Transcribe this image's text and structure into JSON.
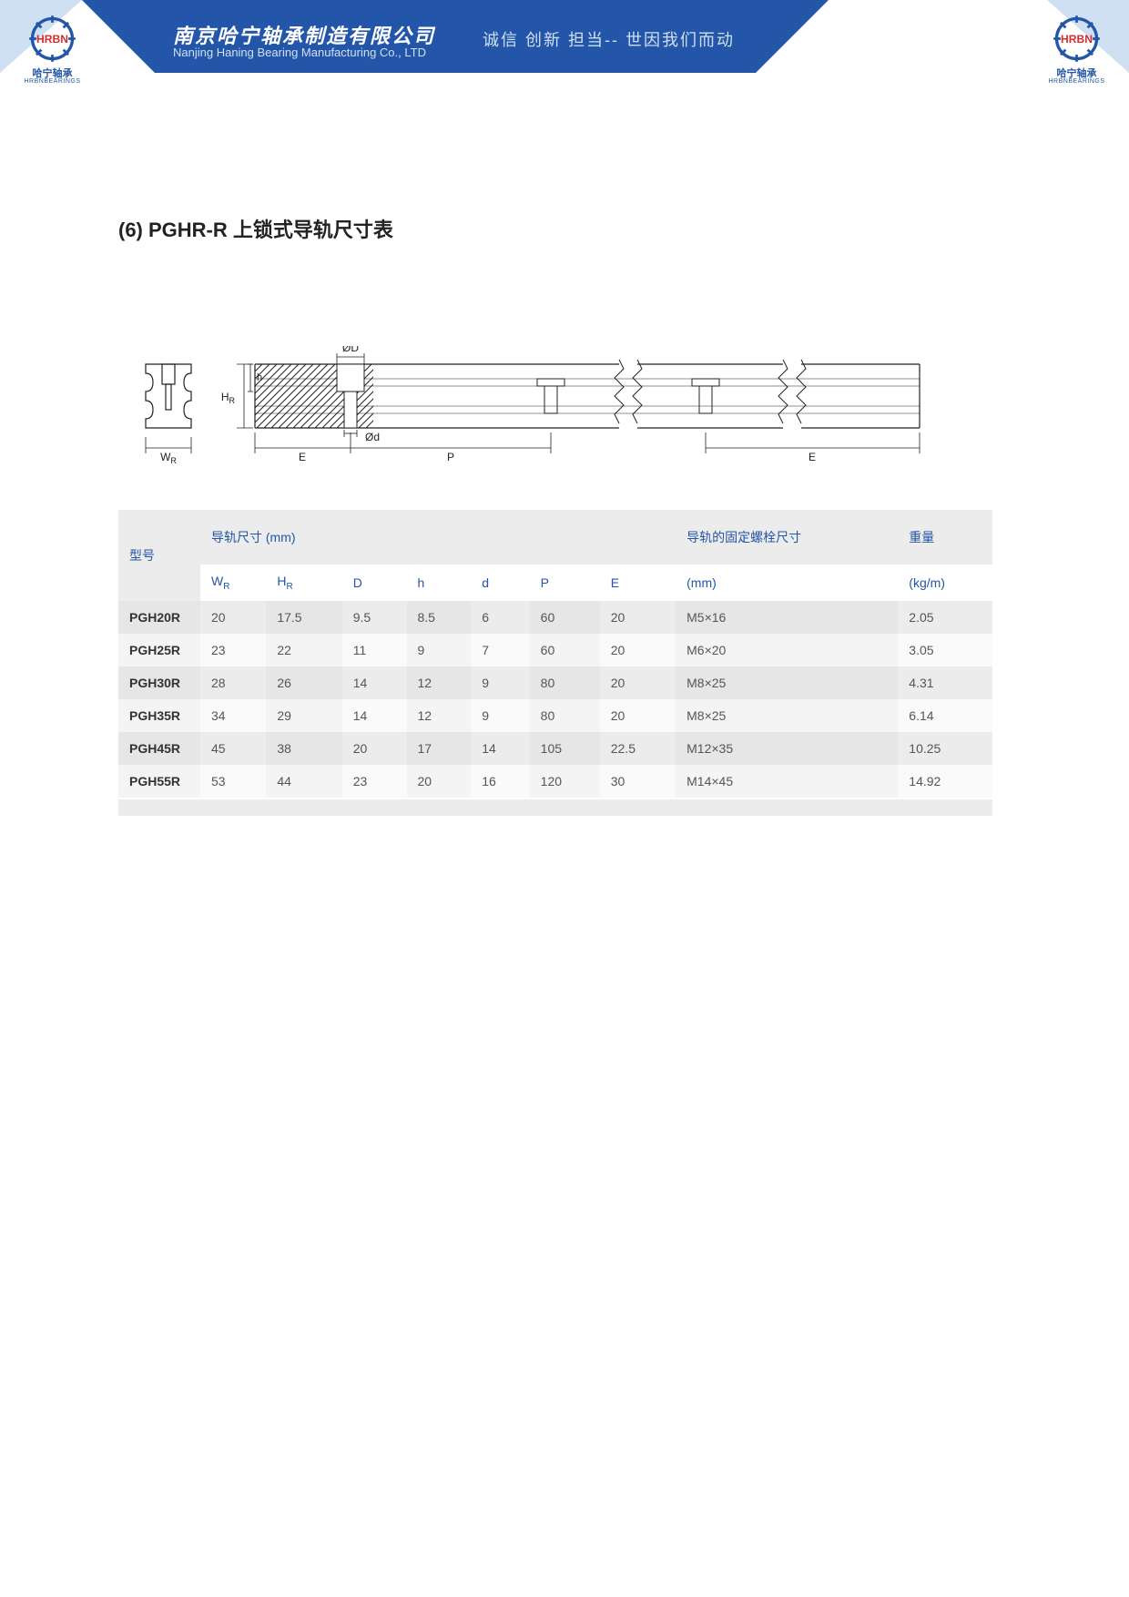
{
  "header": {
    "company_cn": "南京哈宁轴承制造有限公司",
    "company_en": "Nanjing Haning Bearing Manufacturing Co., LTD",
    "tagline": "诚信 创新 担当-- 世因我们而动",
    "logo_label_cn": "哈宁轴承",
    "logo_label_en": "HRBNBEARINGS",
    "logo_mark": "HRBN",
    "brand_color": "#2356a8",
    "banner_bg": "#2356a8",
    "banner_light": "#cfe0f2"
  },
  "title": {
    "text": "(6) PGHR-R 上锁式导轨尺寸表",
    "fontsize": 22
  },
  "diagram": {
    "type": "technical-drawing",
    "labels": {
      "WR": "W",
      "WR_sub": "R",
      "HR": "H",
      "HR_sub": "R",
      "h": "h",
      "D": "ØD",
      "d": "Ød",
      "E": "E",
      "P": "P"
    },
    "stroke": "#222222",
    "stroke_width": 1.2,
    "hatch_spacing": 6
  },
  "table": {
    "type": "table",
    "header_color": "#2356a8",
    "header_bg": "#ececec",
    "col_model_label": "型号",
    "group_rail_label": "导轨尺寸 (mm)",
    "group_bolt_label": "导轨的固定螺栓尺寸",
    "group_weight_label": "重量",
    "columns": [
      "WR",
      "HR",
      "D",
      "h",
      "d",
      "P",
      "E",
      "(mm)",
      "(kg/m)"
    ],
    "col_wr": "W",
    "col_wr_sub": "R",
    "col_hr": "H",
    "col_hr_sub": "R",
    "col_D": "D",
    "col_h": "h",
    "col_d": "d",
    "col_P": "P",
    "col_E": "E",
    "col_bolt": "(mm)",
    "col_weight": "(kg/m)",
    "rows": [
      {
        "model": "PGH20R",
        "WR": "20",
        "HR": "17.5",
        "D": "9.5",
        "h": "8.5",
        "d": "6",
        "P": "60",
        "E": "20",
        "bolt": "M5×16",
        "weight": "2.05"
      },
      {
        "model": "PGH25R",
        "WR": "23",
        "HR": "22",
        "D": "11",
        "h": "9",
        "d": "7",
        "P": "60",
        "E": "20",
        "bolt": "M6×20",
        "weight": "3.05"
      },
      {
        "model": "PGH30R",
        "WR": "28",
        "HR": "26",
        "D": "14",
        "h": "12",
        "d": "9",
        "P": "80",
        "E": "20",
        "bolt": "M8×25",
        "weight": "4.31"
      },
      {
        "model": "PGH35R",
        "WR": "34",
        "HR": "29",
        "D": "14",
        "h": "12",
        "d": "9",
        "P": "80",
        "E": "20",
        "bolt": "M8×25",
        "weight": "6.14"
      },
      {
        "model": "PGH45R",
        "WR": "45",
        "HR": "38",
        "D": "20",
        "h": "17",
        "d": "14",
        "P": "105",
        "E": "22.5",
        "bolt": "M12×35",
        "weight": "10.25"
      },
      {
        "model": "PGH55R",
        "WR": "53",
        "HR": "44",
        "D": "23",
        "h": "20",
        "d": "16",
        "P": "120",
        "E": "30",
        "bolt": "M14×45",
        "weight": "14.92"
      }
    ],
    "stripe_even_odd": "#e6e6e6",
    "stripe_even_even": "#ececec",
    "stripe_odd_odd": "#f4f4f4",
    "stripe_odd_even": "#fafafa"
  }
}
